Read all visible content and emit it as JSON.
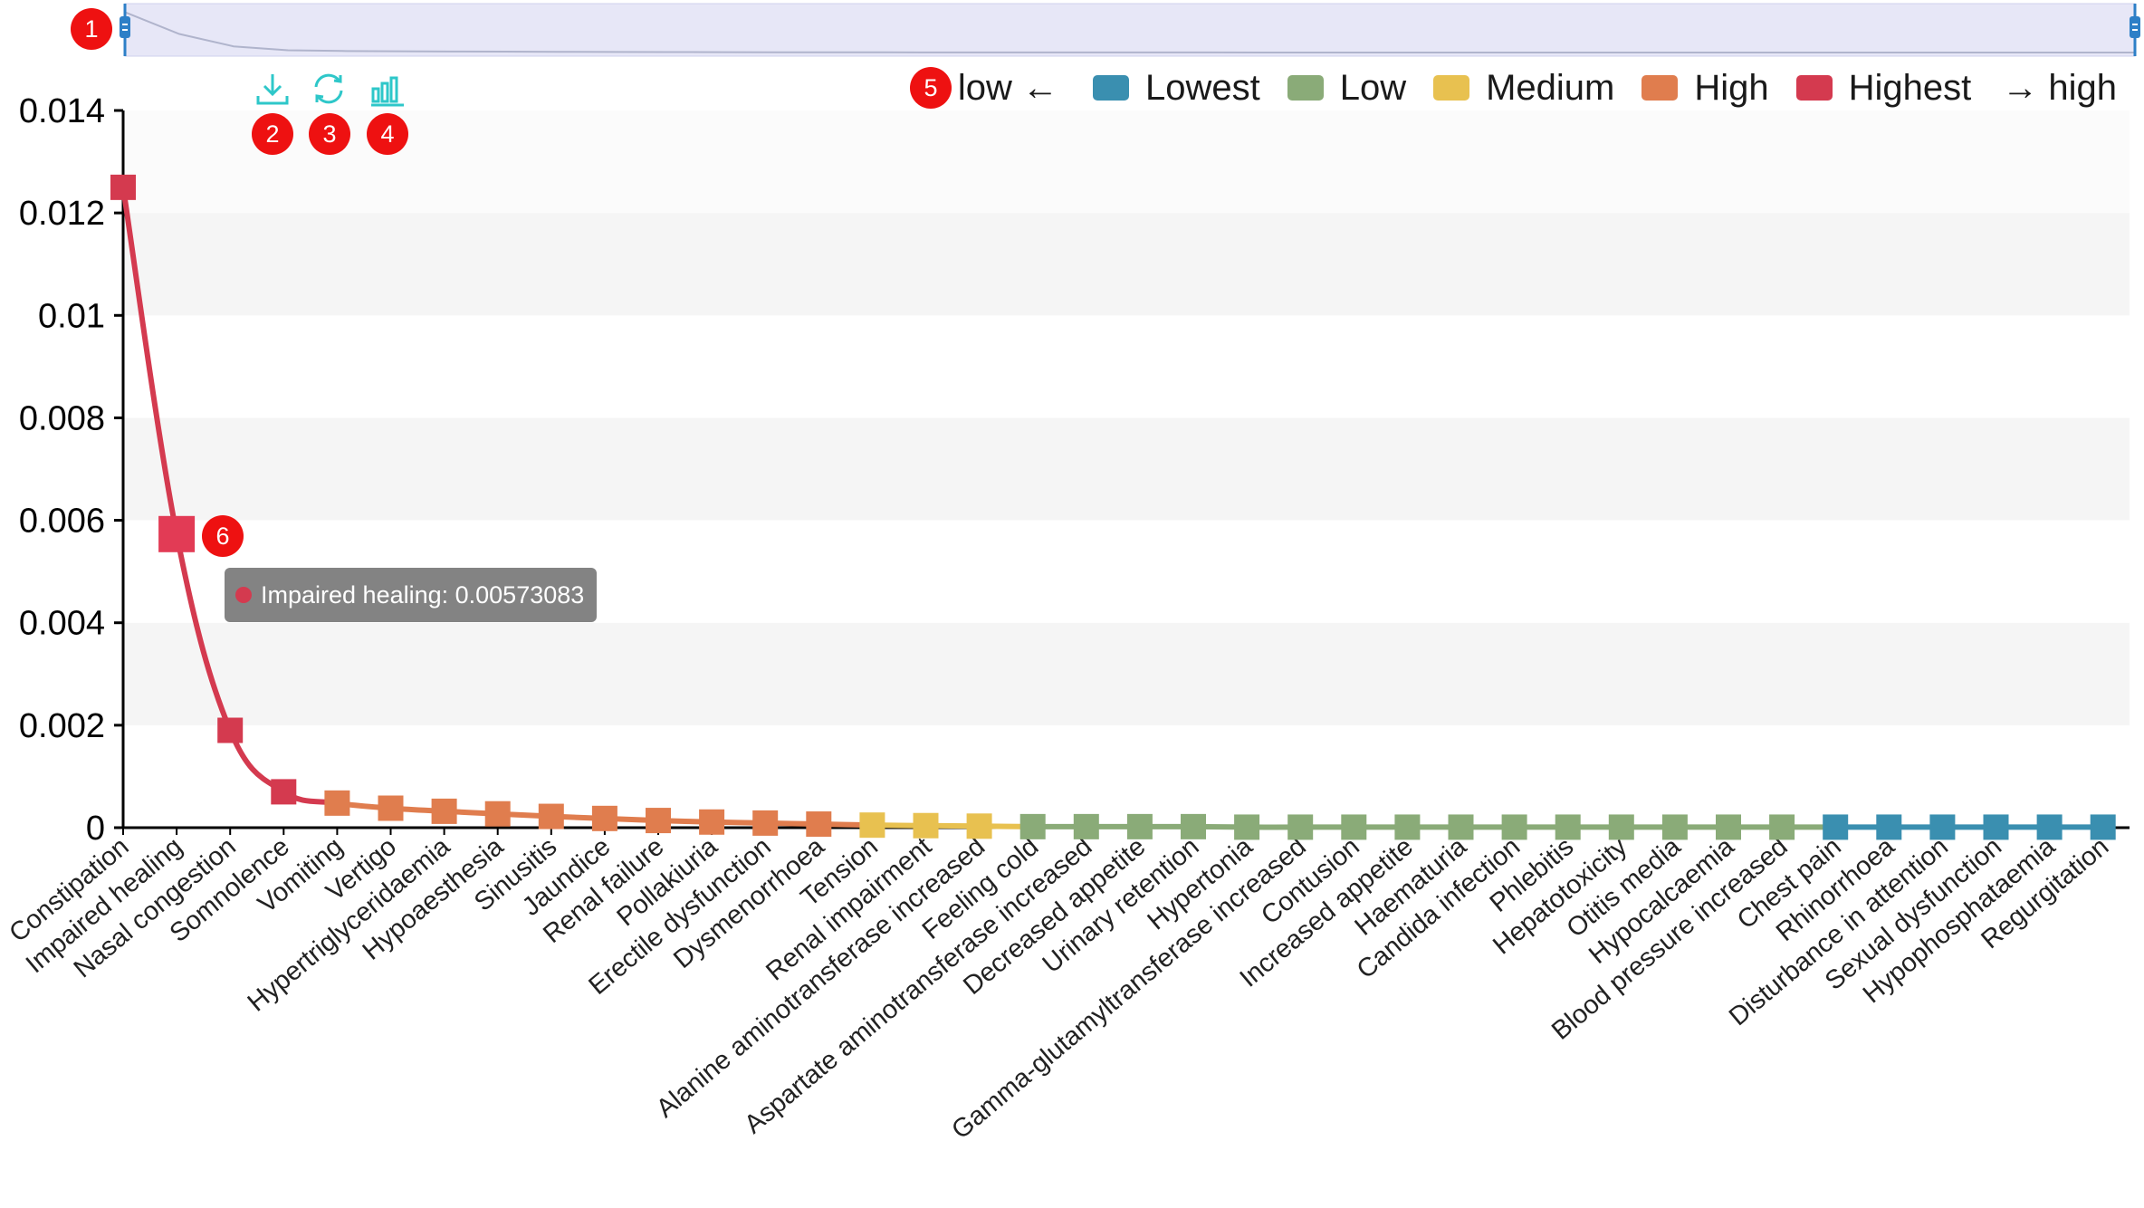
{
  "toolbox": {
    "download_icon": "download-icon",
    "refresh_icon": "refresh-icon",
    "bar_chart_icon": "bar-chart-icon",
    "color": "#2ec7c9"
  },
  "badges": {
    "b1": "1",
    "b2": "2",
    "b3": "3",
    "b4": "4",
    "b5": "5",
    "b6": "6"
  },
  "legend": {
    "low_text": "low ←",
    "high_text": "→ high",
    "items": [
      {
        "label": "Lowest",
        "color": "#3a8fb0"
      },
      {
        "label": "Low",
        "color": "#8aab78"
      },
      {
        "label": "Medium",
        "color": "#e8c150"
      },
      {
        "label": "High",
        "color": "#e07d4e"
      },
      {
        "label": "Highest",
        "color": "#d43a4f"
      }
    ]
  },
  "tooltip": {
    "text": "Impaired healing: 0.00573083",
    "color": "#d43a4f"
  },
  "chart_data": {
    "type": "line",
    "ylim": [
      0,
      0.014
    ],
    "yticks": [
      "0",
      "0.002",
      "0.004",
      "0.006",
      "0.008",
      "0.01",
      "0.012",
      "0.014"
    ],
    "categories": [
      "Constipation",
      "Impaired healing",
      "Nasal congestion",
      "Somnolence",
      "Vomiting",
      "Vertigo",
      "Hypertriglyceridaemia",
      "Hypoaesthesia",
      "Sinusitis",
      "Jaundice",
      "Renal failure",
      "Pollakiuria",
      "Erectile dysfunction",
      "Dysmenorrhoea",
      "Tension",
      "Renal impairment",
      "Alanine aminotransferase increased",
      "Feeling cold",
      "Aspartate aminotransferase increased",
      "Decreased appetite",
      "Urinary retention",
      "Hypertonia",
      "Gamma-glutamyltransferase increased",
      "Contusion",
      "Increased appetite",
      "Haematuria",
      "Candida infection",
      "Phlebitis",
      "Hepatotoxicity",
      "Otitis media",
      "Hypocalcaemia",
      "Blood pressure increased",
      "Chest pain",
      "Rhinorrhoea",
      "Disturbance in attention",
      "Sexual dysfunction",
      "Hypophosphataemia",
      "Regurgitation"
    ],
    "values": [
      0.0125,
      0.00573083,
      0.0019,
      0.0007,
      0.00048,
      0.00038,
      0.00032,
      0.00027,
      0.00022,
      0.00018,
      0.00014,
      0.00011,
      9e-05,
      7e-05,
      5e-05,
      4e-05,
      3e-05,
      2e-05,
      2e-05,
      2e-05,
      2e-05,
      1e-05,
      1e-05,
      1e-05,
      1e-05,
      1e-05,
      1e-05,
      1e-05,
      1e-05,
      1e-05,
      1e-05,
      1e-05,
      1e-05,
      1e-05,
      1e-05,
      1e-05,
      1e-05,
      1e-05
    ],
    "levels": [
      "Highest",
      "Highest",
      "Highest",
      "Highest",
      "High",
      "High",
      "High",
      "High",
      "High",
      "High",
      "High",
      "High",
      "High",
      "High",
      "Medium",
      "Medium",
      "Medium",
      "Low",
      "Low",
      "Low",
      "Low",
      "Low",
      "Low",
      "Low",
      "Low",
      "Low",
      "Low",
      "Low",
      "Low",
      "Low",
      "Low",
      "Low",
      "Lowest",
      "Lowest",
      "Lowest",
      "Lowest",
      "Lowest",
      "Lowest"
    ],
    "highlighted_index": 1,
    "grid": "horizontal-bands",
    "legend_position": "top-right",
    "data_zoom": "top slider"
  }
}
